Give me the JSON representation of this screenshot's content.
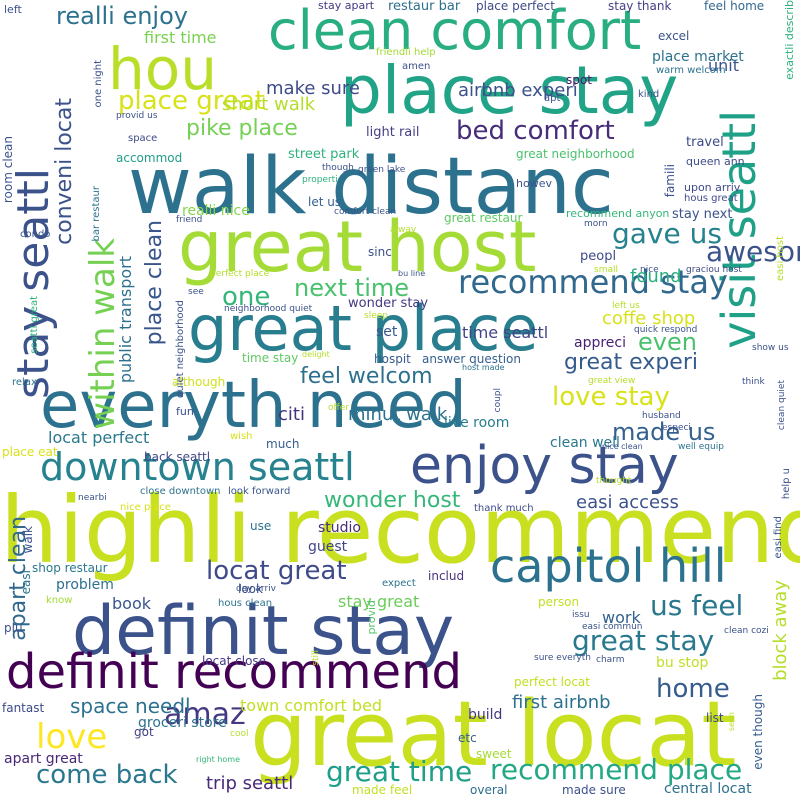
{
  "words": [
    {
      "id": "highli-recommend",
      "text": "highli recommend",
      "color": "#c8e020"
    },
    {
      "id": "great-locat",
      "text": "great locat",
      "color": "#c8e020"
    },
    {
      "id": "walk-distanc",
      "text": "walk distanc",
      "color": "#2c728e"
    },
    {
      "id": "great-host",
      "text": "great host",
      "color": "#a5db36"
    },
    {
      "id": "definit-stay",
      "text": "definit stay",
      "color": "#3b528b"
    },
    {
      "id": "everyth-need",
      "text": "everyth need",
      "color": "#2c728e"
    },
    {
      "id": "place-stay",
      "text": "place stay",
      "color": "#20a386"
    },
    {
      "id": "great-place",
      "text": "great place",
      "color": "#287d8e"
    },
    {
      "id": "clean-comfort",
      "text": "clean comfort",
      "color": "#28ae80"
    },
    {
      "id": "enjoy-stay",
      "text": "enjoy stay",
      "color": "#3b528b"
    },
    {
      "id": "definit-recommend",
      "text": "definit recommend",
      "color": "#440154"
    },
    {
      "id": "capitol-hill",
      "text": "capitol hill",
      "color": "#2c728e"
    },
    {
      "id": "stay-seattl",
      "text": "stay seattl",
      "color": "#3b528b"
    },
    {
      "id": "visit-seattl",
      "text": "visit seattl",
      "color": "#1fa188"
    },
    {
      "id": "hou",
      "text": "hou",
      "color": "#b8de29"
    },
    {
      "id": "downtown-seattl",
      "text": "downtown seattl",
      "color": "#26828e"
    },
    {
      "id": "within-walk",
      "text": "within walk",
      "color": "#75d054"
    },
    {
      "id": "recommend-stay",
      "text": "recommend stay",
      "color": "#31688e"
    },
    {
      "id": "great-time",
      "text": "great time",
      "color": "#1f9e89"
    },
    {
      "id": "recommend-place",
      "text": "recommend place",
      "color": "#22a884"
    },
    {
      "id": "great-stay",
      "text": "great stay",
      "color": "#2a788e"
    },
    {
      "id": "love",
      "text": "love",
      "color": "#fde725"
    },
    {
      "id": "realli-enjoy",
      "text": "realli enjoy",
      "color": "#2c728e"
    },
    {
      "id": "bed-comfort",
      "text": "bed comfort",
      "color": "#472c7a"
    },
    {
      "id": "place-great",
      "text": "place great",
      "color": "#d8e219"
    },
    {
      "id": "locat-great",
      "text": "locat great",
      "color": "#3e4a89"
    },
    {
      "id": "us-feel",
      "text": "us feel",
      "color": "#2a788e"
    },
    {
      "id": "gave-us",
      "text": "gave us",
      "color": "#26828e"
    },
    {
      "id": "awesom",
      "text": "awesom",
      "color": "#3b528b"
    },
    {
      "id": "next-time",
      "text": "next time",
      "color": "#4ac16d"
    },
    {
      "id": "one",
      "text": "one",
      "color": "#35b779"
    },
    {
      "id": "love-stay",
      "text": "love stay",
      "color": "#d8e219"
    },
    {
      "id": "made-us",
      "text": "made us",
      "color": "#34618d"
    },
    {
      "id": "come-back",
      "text": "come back",
      "color": "#2a788e"
    },
    {
      "id": "home",
      "text": "home",
      "color": "#365c8d"
    },
    {
      "id": "amaz",
      "text": "amaz",
      "color": "#443983"
    },
    {
      "id": "great-experi",
      "text": "great experi",
      "color": "#365c8d"
    },
    {
      "id": "even",
      "text": "even",
      "color": "#4ac16d"
    },
    {
      "id": "feel-welcom",
      "text": "feel welcom",
      "color": "#2d708e"
    },
    {
      "id": "wonder-host",
      "text": "wonder host",
      "color": "#35b779"
    },
    {
      "id": "conveni-locat",
      "text": "conveni locat",
      "color": "#3b528b"
    },
    {
      "id": "place-clean",
      "text": "place clean",
      "color": "#39568c"
    },
    {
      "id": "apart-clean",
      "text": "apart clean",
      "color": "#31688e"
    },
    {
      "id": "pike-place",
      "text": "pike place",
      "color": "#75d054"
    },
    {
      "id": "make-sure",
      "text": "make sure",
      "color": "#3e4a89"
    },
    {
      "id": "airbnb-experi",
      "text": "airbnb experi",
      "color": "#3b528b"
    },
    {
      "id": "first-time",
      "text": "first time",
      "color": "#7ad151"
    },
    {
      "id": "short-walk",
      "text": "short walk",
      "color": "#b5de2b"
    },
    {
      "id": "public-transport",
      "text": "public transport",
      "color": "#2d708e"
    },
    {
      "id": "block-away",
      "text": "block away",
      "color": "#b5de2b"
    },
    {
      "id": "space-needl",
      "text": "space needl",
      "color": "#2c728e"
    },
    {
      "id": "easi-access",
      "text": "easi access",
      "color": "#3b528b"
    },
    {
      "id": "found",
      "text": "found",
      "color": "#29af7f"
    },
    {
      "id": "coffe-shop",
      "text": "coffe shop",
      "color": "#d8e219"
    },
    {
      "id": "time-seattl",
      "text": "time seattl",
      "color": "#414487"
    },
    {
      "id": "citi",
      "text": "citi",
      "color": "#46337e"
    },
    {
      "id": "minut-walk",
      "text": "minut walk",
      "color": "#2c728e"
    },
    {
      "id": "trip-seattl",
      "text": "trip seattl",
      "color": "#472a7a"
    },
    {
      "id": "first-airbnb",
      "text": "first airbnb",
      "color": "#2c728e"
    },
    {
      "id": "town-comfort-bed",
      "text": "town comfort bed",
      "color": "#c2df23"
    },
    {
      "id": "locat-perfect",
      "text": "locat perfect",
      "color": "#2a788e"
    },
    {
      "id": "stay-great",
      "text": "stay great",
      "color": "#6ccd5a"
    },
    {
      "id": "bu-stop",
      "text": "bu stop",
      "color": "#c2df23"
    },
    {
      "id": "book",
      "text": "book",
      "color": "#39568c"
    },
    {
      "id": "work",
      "text": "work",
      "color": "#34618d"
    },
    {
      "id": "guest",
      "text": "guest",
      "color": "#404688"
    },
    {
      "id": "studio",
      "text": "studio",
      "color": "#472d7b"
    },
    {
      "id": "live-room",
      "text": "live room",
      "color": "#287d8e"
    },
    {
      "id": "clean-well",
      "text": "clean well",
      "color": "#2a788e"
    },
    {
      "id": "street-park",
      "text": "street park",
      "color": "#2db27d"
    },
    {
      "id": "light-rail",
      "text": "light rail",
      "color": "#433e85"
    },
    {
      "id": "great-neighborhood",
      "text": "great neighborhood",
      "color": "#4ac16d"
    },
    {
      "id": "great-restaur",
      "text": "great restaur",
      "color": "#5ec962"
    },
    {
      "id": "recommend-anyon",
      "text": "recommend anyon",
      "color": "#35b779"
    },
    {
      "id": "stay-next",
      "text": "stay next",
      "color": "#3b528b"
    },
    {
      "id": "realli-nice",
      "text": "realli nice",
      "color": "#86d549"
    },
    {
      "id": "let-us",
      "text": "let us",
      "color": "#355f8d"
    },
    {
      "id": "sinc",
      "text": "sinc",
      "color": "#3b528b"
    },
    {
      "id": "peopl",
      "text": "peopl",
      "color": "#3e4a89"
    },
    {
      "id": "wonder-stay",
      "text": "wonder stay",
      "color": "#443983"
    },
    {
      "id": "set",
      "text": "set",
      "color": "#38588c"
    },
    {
      "id": "appreci",
      "text": "appreci",
      "color": "#482374"
    },
    {
      "id": "answer-question",
      "text": "answer question",
      "color": "#355f8d"
    },
    {
      "id": "time-stay",
      "text": "time stay",
      "color": "#5ec962"
    },
    {
      "id": "hospit",
      "text": "hospit",
      "color": "#375a8c"
    },
    {
      "id": "accommod",
      "text": "accommod",
      "color": "#1f9e89"
    },
    {
      "id": "travel",
      "text": "travel",
      "color": "#3e4989"
    },
    {
      "id": "unit",
      "text": "unit",
      "color": "#3b528b"
    },
    {
      "id": "spot",
      "text": "spot",
      "color": "#48186a"
    },
    {
      "id": "place-market",
      "text": "place market",
      "color": "#2c728e"
    },
    {
      "id": "restaur-bar",
      "text": "restaur bar",
      "color": "#2d708e"
    },
    {
      "id": "place-perfect",
      "text": "place perfect",
      "color": "#3e4a89"
    },
    {
      "id": "stay-thank",
      "text": "stay thank",
      "color": "#433e85"
    },
    {
      "id": "feel-home",
      "text": "feel home",
      "color": "#31688e"
    },
    {
      "id": "excel",
      "text": "excel",
      "color": "#3b528b"
    },
    {
      "id": "stay-apart",
      "text": "stay apart",
      "color": "#443983"
    },
    {
      "id": "exactli-describ",
      "text": "exactli describ",
      "color": "#2db27d"
    },
    {
      "id": "although",
      "text": "although",
      "color": "#d0e11c"
    },
    {
      "id": "close-downtown",
      "text": "close downtown",
      "color": "#2c728e"
    },
    {
      "id": "look-forward",
      "text": "look forward",
      "color": "#39568c"
    },
    {
      "id": "thank-much",
      "text": "thank much",
      "color": "#3e4a89"
    },
    {
      "id": "much",
      "text": "much",
      "color": "#355f8d"
    },
    {
      "id": "back-seattl",
      "text": "back seattl",
      "color": "#3f4788"
    },
    {
      "id": "nice-place",
      "text": "nice place",
      "color": "#d8e219"
    },
    {
      "id": "includ",
      "text": "includ",
      "color": "#46327e"
    },
    {
      "id": "shop-restaur",
      "text": "shop restaur",
      "color": "#2a788e"
    },
    {
      "id": "problem",
      "text": "problem",
      "color": "#2d708e"
    },
    {
      "id": "groceri-store",
      "text": "groceri store",
      "color": "#2c728e"
    },
    {
      "id": "right-home",
      "text": "right home",
      "color": "#35b779"
    },
    {
      "id": "made-feel",
      "text": "made feel",
      "color": "#c2df23"
    },
    {
      "id": "overal",
      "text": "overal",
      "color": "#2d708e"
    },
    {
      "id": "made-sure",
      "text": "made sure",
      "color": "#3b528b"
    },
    {
      "id": "central-locat",
      "text": "central locat",
      "color": "#2d708e"
    },
    {
      "id": "sweet",
      "text": "sweet",
      "color": "#a5db36"
    },
    {
      "id": "etc",
      "text": "etc",
      "color": "#355f8d"
    },
    {
      "id": "build",
      "text": "build",
      "color": "#453781"
    },
    {
      "id": "perfect-locat",
      "text": "perfect locat",
      "color": "#c2df23"
    },
    {
      "id": "list",
      "text": "list",
      "color": "#3e4989"
    },
    {
      "id": "even-though",
      "text": "even though",
      "color": "#365c8d"
    },
    {
      "id": "fantast",
      "text": "fantast",
      "color": "#3e4a89"
    },
    {
      "id": "apart-great",
      "text": "apart great",
      "color": "#482878"
    },
    {
      "id": "got",
      "text": "got",
      "color": "#433e85"
    },
    {
      "id": "locat-close",
      "text": "locat close",
      "color": "#443983"
    },
    {
      "id": "person",
      "text": "person",
      "color": "#c2df23"
    },
    {
      "id": "provid",
      "text": "provid",
      "color": "#54c568"
    },
    {
      "id": "place-eat",
      "text": "place eat",
      "color": "#d8e219"
    },
    {
      "id": "wish",
      "text": "wish",
      "color": "#d8e219"
    },
    {
      "id": "fun",
      "text": "fun",
      "color": "#3b528b"
    },
    {
      "id": "offer",
      "text": "offer",
      "color": "#b5de2b"
    },
    {
      "id": "relax",
      "text": "relax",
      "color": "#2c728e"
    },
    {
      "id": "nearbi",
      "text": "nearbi",
      "color": "#3b528b"
    },
    {
      "id": "use",
      "text": "use",
      "color": "#2c728e"
    },
    {
      "id": "plu",
      "text": "plu",
      "color": "#3b528b"
    },
    {
      "id": "know",
      "text": "know",
      "color": "#a5db36"
    },
    {
      "id": "easi",
      "text": "easi",
      "color": "#2c728e"
    },
    {
      "id": "walk",
      "text": "walk",
      "color": "#3b528b"
    },
    {
      "id": "room-clean",
      "text": "room clean",
      "color": "#3b528b"
    },
    {
      "id": "condo",
      "text": "condo",
      "color": "#3b528b"
    },
    {
      "id": "seattl-great",
      "text": "seattl great",
      "color": "#2db27d"
    },
    {
      "id": "bar-restaur",
      "text": "bar restaur",
      "color": "#2c728e"
    },
    {
      "id": "space",
      "text": "space",
      "color": "#3e4a89"
    },
    {
      "id": "provid-us",
      "text": "provid us",
      "color": "#3b528b"
    },
    {
      "id": "one-night",
      "text": "one night",
      "color": "#3b528b"
    },
    {
      "id": "left",
      "text": "left",
      "color": "#3b528b"
    },
    {
      "id": "friendli-help",
      "text": "friendli help",
      "color": "#a5db36"
    },
    {
      "id": "amen",
      "text": "amen",
      "color": "#3b528b"
    },
    {
      "id": "apt",
      "text": "apt",
      "color": "#3b528b"
    },
    {
      "id": "kind",
      "text": "kind",
      "color": "#3b528b"
    },
    {
      "id": "warm-welcom",
      "text": "warm welcom",
      "color": "#2c728e"
    },
    {
      "id": "famili",
      "text": "famili",
      "color": "#3b528b"
    },
    {
      "id": "queen-ann",
      "text": "queen ann",
      "color": "#3e4a89"
    },
    {
      "id": "upon-arriv",
      "text": "upon arriv",
      "color": "#3e4a89"
    },
    {
      "id": "hous-great",
      "text": "hous great",
      "color": "#3e4a89"
    },
    {
      "id": "howev",
      "text": "howev",
      "color": "#3b528b"
    },
    {
      "id": "green-lake",
      "text": "green lake",
      "color": "#3b528b"
    },
    {
      "id": "though",
      "text": "though",
      "color": "#3b528b"
    },
    {
      "id": "properti",
      "text": "properti",
      "color": "#2db27d"
    },
    {
      "id": "comfort-clean",
      "text": "comfort clean",
      "color": "#3b528b"
    },
    {
      "id": "friend",
      "text": "friend",
      "color": "#3b528b"
    },
    {
      "id": "alway",
      "text": "alway",
      "color": "#b5de2b"
    },
    {
      "id": "morn",
      "text": "morn",
      "color": "#3b528b"
    },
    {
      "id": "easi-host",
      "text": "easi host",
      "color": "#b5de2b"
    },
    {
      "id": "bu-line",
      "text": "bu line",
      "color": "#3b528b"
    },
    {
      "id": "perfect-place",
      "text": "perfect place",
      "color": "#b5de2b"
    },
    {
      "id": "small",
      "text": "small",
      "color": "#b5de2b"
    },
    {
      "id": "nice",
      "text": "nice",
      "color": "#3b528b"
    },
    {
      "id": "graciou-host",
      "text": "graciou host",
      "color": "#3e4a89"
    },
    {
      "id": "see",
      "text": "see",
      "color": "#3b528b"
    },
    {
      "id": "neighborhood-quiet",
      "text": "neighborhood quiet",
      "color": "#3b528b"
    },
    {
      "id": "quiet-neighborhood",
      "text": "quiet neighborhood",
      "color": "#3b528b"
    },
    {
      "id": "sleep",
      "text": "sleep",
      "color": "#b5de2b"
    },
    {
      "id": "left-us",
      "text": "left us",
      "color": "#b5de2b"
    },
    {
      "id": "quick-respond",
      "text": "quick respond",
      "color": "#3b528b"
    },
    {
      "id": "show-us",
      "text": "show us",
      "color": "#3b528b"
    },
    {
      "id": "delight",
      "text": "delight",
      "color": "#b5de2b"
    },
    {
      "id": "host-made",
      "text": "host made",
      "color": "#2c728e"
    },
    {
      "id": "great-view",
      "text": "great view",
      "color": "#b5de2b"
    },
    {
      "id": "think",
      "text": "think",
      "color": "#3b528b"
    },
    {
      "id": "clean-quiet",
      "text": "clean quiet",
      "color": "#3b528b"
    },
    {
      "id": "coupl",
      "text": "coupl",
      "color": "#3b528b"
    },
    {
      "id": "husband",
      "text": "husband",
      "color": "#3b528b"
    },
    {
      "id": "especi",
      "text": "especi",
      "color": "#3b528b"
    },
    {
      "id": "nice-clean",
      "text": "nice clean",
      "color": "#3b528b"
    },
    {
      "id": "well-equip",
      "text": "well equip",
      "color": "#2c728e"
    },
    {
      "id": "thought",
      "text": "thought",
      "color": "#b5de2b"
    },
    {
      "id": "help-u",
      "text": "help u",
      "color": "#3b528b"
    },
    {
      "id": "easi-find",
      "text": "easi find",
      "color": "#3b528b"
    },
    {
      "id": "day-arriv",
      "text": "day arriv",
      "color": "#3b528b"
    },
    {
      "id": "look",
      "text": "look",
      "color": "#3b528b"
    },
    {
      "id": "hous-clean",
      "text": "hous clean",
      "color": "#2c728e"
    },
    {
      "id": "expect",
      "text": "expect",
      "color": "#2c728e"
    },
    {
      "id": "still",
      "text": "still",
      "color": "#b5de2b"
    },
    {
      "id": "issu",
      "text": "issu",
      "color": "#3b528b"
    },
    {
      "id": "easi-commun",
      "text": "easi commun",
      "color": "#3b528b"
    },
    {
      "id": "charm",
      "text": "charm",
      "color": "#3b528b"
    },
    {
      "id": "clean-cozi",
      "text": "clean cozi",
      "color": "#3b528b"
    },
    {
      "id": "sure-everyth",
      "text": "sure everyth",
      "color": "#3b528b"
    },
    {
      "id": "cool",
      "text": "cool",
      "color": "#b5de2b"
    },
    {
      "id": "seen",
      "text": "seen",
      "color": "#b5de2b"
    }
  ]
}
